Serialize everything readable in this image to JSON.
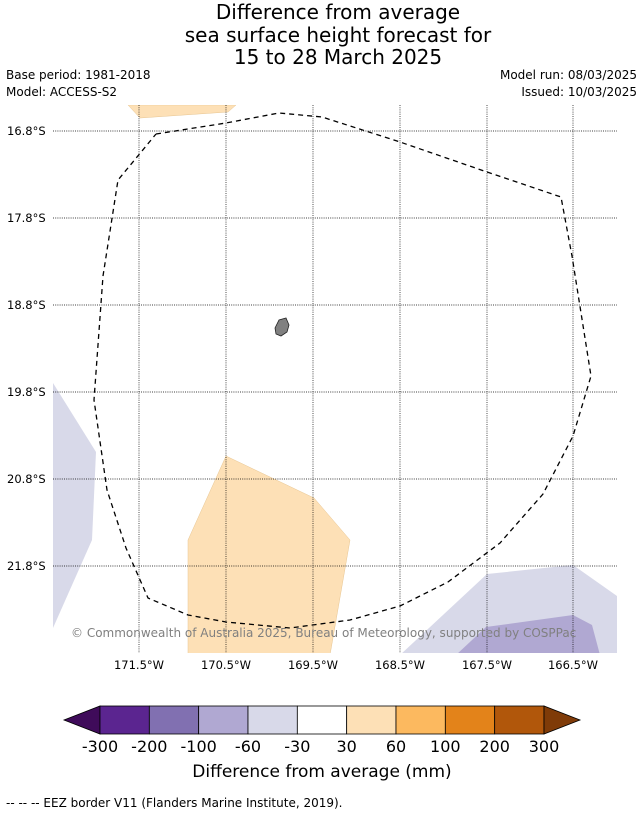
{
  "header": {
    "title_lines": [
      "Difference from average",
      "sea surface height forecast for",
      "15 to 28 March 2025"
    ],
    "base_period": "Base period: 1981-2018",
    "model": "Model: ACCESS-S2",
    "model_run": "Model run: 08/03/2025",
    "issued": "Issued: 10/03/2025"
  },
  "map": {
    "lat_labels": [
      "16.8°S",
      "17.8°S",
      "18.8°S",
      "19.8°S",
      "20.8°S",
      "21.8°S"
    ],
    "lon_labels": [
      "171.5°W",
      "170.5°W",
      "169.5°W",
      "168.5°W",
      "167.5°W",
      "166.5°W"
    ],
    "attribution": "© Commonwealth of Australia 2025, Bureau of Meteorology, supported by COSPPac",
    "colors": {
      "light_orange": "#fde0b6",
      "light_purple": "#d8d9e9",
      "mid_purple": "#b0a8d2",
      "land": "#808080",
      "grid": "#000000"
    }
  },
  "colorbar": {
    "title": "Difference from average (mm)",
    "tick_labels": [
      "-300",
      "-200",
      "-100",
      "-60",
      "-30",
      "30",
      "60",
      "100",
      "200",
      "300"
    ],
    "colors": [
      "#3f0b5a",
      "#5b2590",
      "#8170b1",
      "#b0a8d2",
      "#d8d9e9",
      "#ffffff",
      "#fde0b6",
      "#fcb95f",
      "#e3831a",
      "#b1570b",
      "#7f3b08"
    ]
  },
  "footnote": "--  --  -- EEZ border V11 (Flanders Marine Institute, 2019)."
}
